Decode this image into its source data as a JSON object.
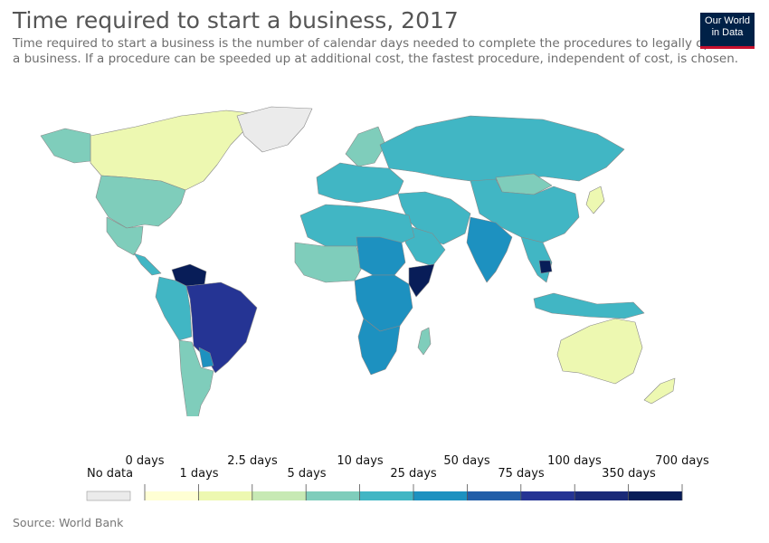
{
  "title": "Time required to start a business, 2017",
  "subtitle": "Time required to start a business is the number of calendar days needed to complete the procedures to legally operate a business. If a procedure can be speeded up at additional cost, the fastest procedure, independent of cost, is chosen.",
  "logo": {
    "line1": "Our World",
    "line2": "in Data",
    "bg": "#002147",
    "accent": "#c8102e"
  },
  "source": "Source: World Bank",
  "legend": {
    "no_data": {
      "label": "No data",
      "color": "#ebebeb"
    },
    "top_labels": [
      "0 days",
      "2.5 days",
      "10 days",
      "50 days",
      "100 days",
      "700 days"
    ],
    "bottom_labels": [
      "1 days",
      "5 days",
      "25 days",
      "75 days",
      "350 days"
    ],
    "colors": [
      "#ffffd4",
      "#edf8b1",
      "#c7e9b4",
      "#7fcdbb",
      "#41b6c4",
      "#1d91c0",
      "#225ea8",
      "#253494",
      "#1a2a78",
      "#081d58"
    ]
  },
  "map_regions": {
    "canada": "#edf8b1",
    "usa": "#7fcdbb",
    "mexico": "#7fcdbb",
    "central_america": "#41b6c4",
    "colombia_ecuador_peru": "#41b6c4",
    "venezuela": "#081d58",
    "brazil_bolivia": "#253494",
    "paraguay": "#1d91c0",
    "argentina_chile": "#7fcdbb",
    "greenland": "#ebebeb",
    "north_africa": "#41b6c4",
    "sahel": "#7fcdbb",
    "chad_sudan": "#1d91c0",
    "central_africa": "#1d91c0",
    "somalia": "#081d58",
    "southern_africa": "#1d91c0",
    "madagascar": "#7fcdbb",
    "europe": "#41b6c4",
    "scandinavia": "#7fcdbb",
    "russia": "#41b6c4",
    "mongolia": "#7fcdbb",
    "china": "#41b6c4",
    "middle_east": "#41b6c4",
    "india": "#1d91c0",
    "southeast_asia": "#41b6c4",
    "cambodia": "#081d58",
    "indonesia": "#41b6c4",
    "australia": "#edf8b1",
    "new_zealand": "#edf8b1",
    "japan": "#edf8b1"
  }
}
